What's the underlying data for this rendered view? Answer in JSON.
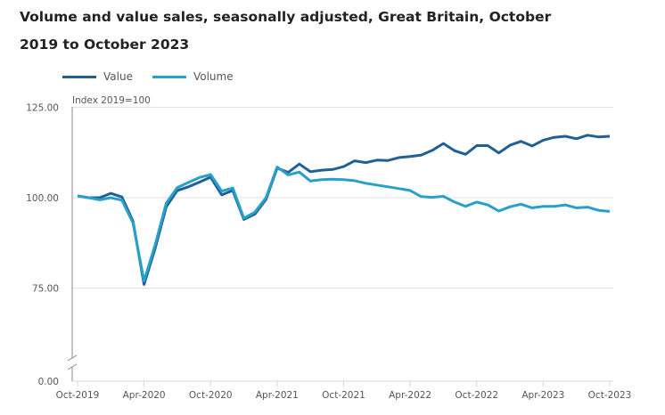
{
  "title": "Volume and value sales, seasonally adjusted, Great Britain, October 2019 to October 2023",
  "chart_data": {
    "type": "line",
    "title": "Volume and value sales, seasonally adjusted, Great Britain, October 2019 to October 2023",
    "ylabel": "Index 2019=100",
    "xlabel": "",
    "ylim": [
      0,
      125
    ],
    "axis_break": [
      0,
      75
    ],
    "yticks": [
      "0.00",
      "75.00",
      "100.00",
      "125.00"
    ],
    "ytick_values": [
      0,
      75,
      100,
      125
    ],
    "xtick_labels": [
      "Oct-2019",
      "Apr-2020",
      "Oct-2020",
      "Apr-2021",
      "Oct-2021",
      "Apr-2022",
      "Oct-2022",
      "Apr-2023",
      "Oct-2023"
    ],
    "xtick_every_months": 6,
    "months_count": 49,
    "grid": true,
    "legend_position": "top-left",
    "series": [
      {
        "name": "Value",
        "color": "#206095",
        "values": [
          100.5,
          100,
          100,
          101.2,
          100.2,
          93.5,
          76,
          86,
          97.5,
          102,
          103,
          104.3,
          105.7,
          100.8,
          102,
          94,
          95.5,
          99.5,
          108.2,
          107,
          109.3,
          107.2,
          107.6,
          107.8,
          108.6,
          110.2,
          109.7,
          110.4,
          110.3,
          111.1,
          111.4,
          111.8,
          113.1,
          115,
          113,
          112,
          114.4,
          114.4,
          112.4,
          114.5,
          115.6,
          114.3,
          115.9,
          116.7,
          117,
          116.3,
          117.3,
          116.8,
          117
        ]
      },
      {
        "name": "Volume",
        "color": "#27a0cc",
        "values": [
          100.5,
          100,
          99.4,
          100,
          99.3,
          93,
          77,
          87,
          98.5,
          102.8,
          104.2,
          105.6,
          106.4,
          101.8,
          102.7,
          94.3,
          96,
          100,
          108.5,
          106.3,
          107.1,
          104.6,
          105,
          105.1,
          105,
          104.7,
          104,
          103.5,
          103,
          102.5,
          102,
          100.3,
          100.1,
          100.4,
          98.8,
          97.6,
          98.8,
          98,
          96.3,
          97.5,
          98.2,
          97.2,
          97.6,
          97.6,
          98,
          97.2,
          97.4,
          96.5,
          96.2
        ]
      }
    ]
  }
}
